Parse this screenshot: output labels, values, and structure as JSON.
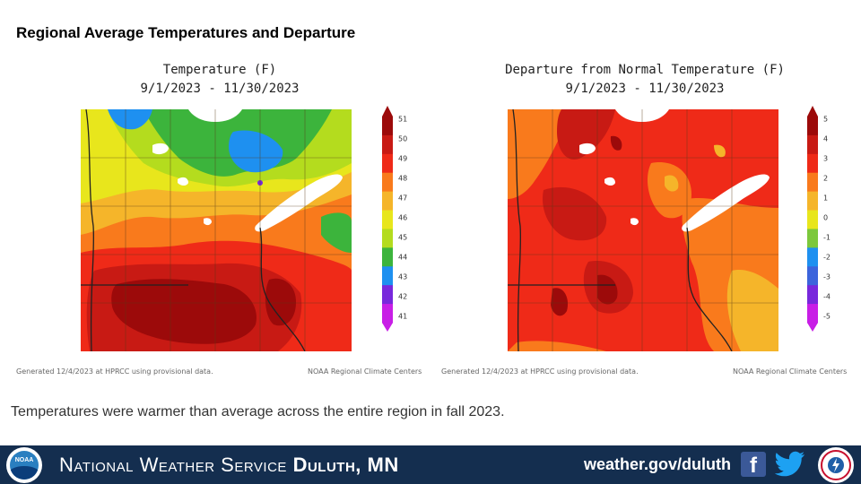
{
  "slide_title": "Regional Average Temperatures and Departure",
  "maps": [
    {
      "title_line1": "Temperature (F)",
      "title_line2": "9/1/2023 - 11/30/2023",
      "footnote_left": "Generated 12/4/2023 at HPRCC using provisional data.",
      "footnote_right": "NOAA Regional Climate Centers",
      "scale_labels": [
        "51",
        "50",
        "49",
        "48",
        "47",
        "46",
        "45",
        "44",
        "43",
        "42",
        "41"
      ],
      "scale_colors": [
        "#9c0a0a",
        "#c81a14",
        "#ef2a18",
        "#f97a1c",
        "#f5b52a",
        "#e8e61c",
        "#b4dc1e",
        "#3cb43c",
        "#1e90f0",
        "#7828dc",
        "#c81ee6"
      ]
    },
    {
      "title_line1": "Departure from Normal Temperature (F)",
      "title_line2": "9/1/2023 - 11/30/2023",
      "footnote_left": "Generated 12/4/2023 at HPRCC using provisional data.",
      "footnote_right": "NOAA Regional Climate Centers",
      "scale_labels": [
        "5",
        "4",
        "3",
        "2",
        "1",
        "0",
        "-1",
        "-2",
        "-3",
        "-4",
        "-5"
      ],
      "scale_colors": [
        "#9c0a0a",
        "#c81a14",
        "#ef2a18",
        "#f97a1c",
        "#f5b52a",
        "#e8e61c",
        "#7cc83c",
        "#1e90f0",
        "#3c64dc",
        "#7828dc",
        "#c81ee6"
      ]
    }
  ],
  "summary": "Temperatures were warmer than average across the entire region in fall 2023.",
  "footer": {
    "agency_prefix": "National Weather Service",
    "office": "Duluth, MN",
    "url": "weather.gov/duluth",
    "noaa_logo_text": "NOAA",
    "facebook_glyph": "f",
    "icons": [
      "noaa-logo",
      "facebook-icon",
      "twitter-icon",
      "nws-logo"
    ],
    "background_color": "#142e4f"
  }
}
